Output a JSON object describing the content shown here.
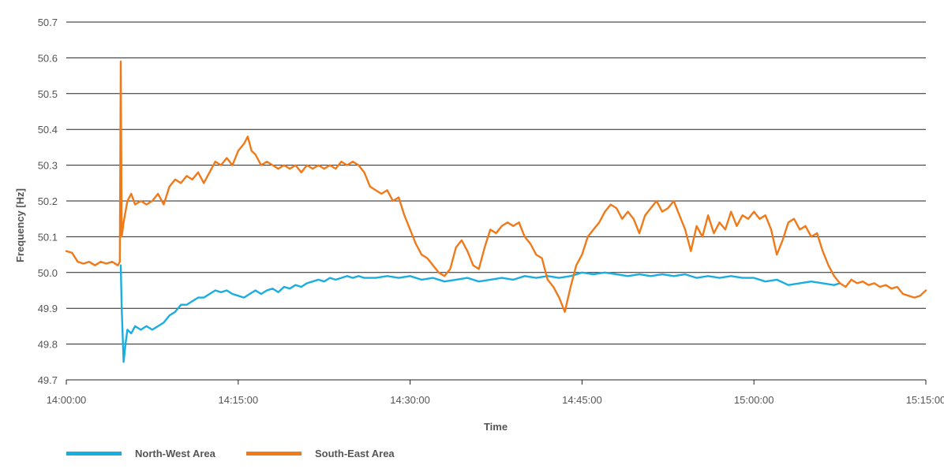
{
  "chart_data": {
    "type": "line",
    "title": "",
    "xlabel": "Time",
    "ylabel": "Frequency [Hz]",
    "ylim": [
      49.7,
      50.7
    ],
    "xlim": [
      "14:00:00",
      "15:15:00"
    ],
    "x_ticks": [
      "14:00:00",
      "14:15:00",
      "14:30:00",
      "14:45:00",
      "15:00:00",
      "15:15:00"
    ],
    "y_ticks": [
      "49.7",
      "49.8",
      "49.9",
      "50.0",
      "50.1",
      "50.2",
      "50.3",
      "50.4",
      "50.5",
      "50.6",
      "50.7"
    ],
    "grid": "horizontal",
    "legend_position": "bottom-left",
    "series": [
      {
        "name": "North-West Area",
        "color": "#1aaee0",
        "start_time": "14:04:45",
        "points": [
          [
            "14:04:45",
            50.02
          ],
          [
            "14:04:50",
            49.9
          ],
          [
            "14:05:00",
            49.75
          ],
          [
            "14:05:10",
            49.8
          ],
          [
            "14:05:20",
            49.84
          ],
          [
            "14:05:40",
            49.83
          ],
          [
            "14:06:00",
            49.85
          ],
          [
            "14:06:30",
            49.84
          ],
          [
            "14:07:00",
            49.85
          ],
          [
            "14:07:30",
            49.84
          ],
          [
            "14:08:00",
            49.85
          ],
          [
            "14:08:30",
            49.86
          ],
          [
            "14:09:00",
            49.88
          ],
          [
            "14:09:30",
            49.89
          ],
          [
            "14:10:00",
            49.91
          ],
          [
            "14:10:30",
            49.91
          ],
          [
            "14:11:00",
            49.92
          ],
          [
            "14:11:30",
            49.93
          ],
          [
            "14:12:00",
            49.93
          ],
          [
            "14:12:30",
            49.94
          ],
          [
            "14:13:00",
            49.95
          ],
          [
            "14:13:30",
            49.945
          ],
          [
            "14:14:00",
            49.95
          ],
          [
            "14:14:30",
            49.94
          ],
          [
            "14:15:00",
            49.935
          ],
          [
            "14:15:30",
            49.93
          ],
          [
            "14:16:00",
            49.94
          ],
          [
            "14:16:30",
            49.95
          ],
          [
            "14:17:00",
            49.94
          ],
          [
            "14:17:30",
            49.95
          ],
          [
            "14:18:00",
            49.955
          ],
          [
            "14:18:30",
            49.945
          ],
          [
            "14:19:00",
            49.96
          ],
          [
            "14:19:30",
            49.955
          ],
          [
            "14:20:00",
            49.965
          ],
          [
            "14:20:30",
            49.96
          ],
          [
            "14:21:00",
            49.97
          ],
          [
            "14:21:30",
            49.975
          ],
          [
            "14:22:00",
            49.98
          ],
          [
            "14:22:30",
            49.975
          ],
          [
            "14:23:00",
            49.985
          ],
          [
            "14:23:30",
            49.98
          ],
          [
            "14:24:00",
            49.985
          ],
          [
            "14:24:30",
            49.99
          ],
          [
            "14:25:00",
            49.985
          ],
          [
            "14:25:30",
            49.99
          ],
          [
            "14:26:00",
            49.985
          ],
          [
            "14:27:00",
            49.985
          ],
          [
            "14:28:00",
            49.99
          ],
          [
            "14:29:00",
            49.985
          ],
          [
            "14:30:00",
            49.99
          ],
          [
            "14:31:00",
            49.98
          ],
          [
            "14:32:00",
            49.985
          ],
          [
            "14:33:00",
            49.975
          ],
          [
            "14:34:00",
            49.98
          ],
          [
            "14:35:00",
            49.985
          ],
          [
            "14:36:00",
            49.975
          ],
          [
            "14:37:00",
            49.98
          ],
          [
            "14:38:00",
            49.985
          ],
          [
            "14:39:00",
            49.98
          ],
          [
            "14:40:00",
            49.99
          ],
          [
            "14:41:00",
            49.985
          ],
          [
            "14:42:00",
            49.99
          ],
          [
            "14:43:00",
            49.985
          ],
          [
            "14:44:00",
            49.99
          ],
          [
            "14:45:00",
            50.0
          ],
          [
            "14:46:00",
            49.995
          ],
          [
            "14:47:00",
            50.0
          ],
          [
            "14:48:00",
            49.995
          ],
          [
            "14:49:00",
            49.99
          ],
          [
            "14:50:00",
            49.995
          ],
          [
            "14:51:00",
            49.99
          ],
          [
            "14:52:00",
            49.995
          ],
          [
            "14:53:00",
            49.99
          ],
          [
            "14:54:00",
            49.995
          ],
          [
            "14:55:00",
            49.985
          ],
          [
            "14:56:00",
            49.99
          ],
          [
            "14:57:00",
            49.985
          ],
          [
            "14:58:00",
            49.99
          ],
          [
            "14:59:00",
            49.985
          ],
          [
            "15:00:00",
            49.985
          ],
          [
            "15:01:00",
            49.975
          ],
          [
            "15:02:00",
            49.98
          ],
          [
            "15:03:00",
            49.965
          ],
          [
            "15:04:00",
            49.97
          ],
          [
            "15:05:00",
            49.975
          ],
          [
            "15:06:00",
            49.97
          ],
          [
            "15:07:00",
            49.965
          ],
          [
            "15:07:30",
            49.97
          ]
        ]
      },
      {
        "name": "South-East Area",
        "color": "#f07a1a",
        "points": [
          [
            "14:00:00",
            50.06
          ],
          [
            "14:00:30",
            50.055
          ],
          [
            "14:01:00",
            50.03
          ],
          [
            "14:01:30",
            50.025
          ],
          [
            "14:02:00",
            50.03
          ],
          [
            "14:02:30",
            50.02
          ],
          [
            "14:03:00",
            50.03
          ],
          [
            "14:03:30",
            50.025
          ],
          [
            "14:04:00",
            50.03
          ],
          [
            "14:04:30",
            50.02
          ],
          [
            "14:04:40",
            50.03
          ],
          [
            "14:04:45",
            50.59
          ],
          [
            "14:04:50",
            50.1
          ],
          [
            "14:05:00",
            50.14
          ],
          [
            "14:05:20",
            50.2
          ],
          [
            "14:05:40",
            50.22
          ],
          [
            "14:06:00",
            50.19
          ],
          [
            "14:06:30",
            50.2
          ],
          [
            "14:07:00",
            50.19
          ],
          [
            "14:07:30",
            50.2
          ],
          [
            "14:08:00",
            50.22
          ],
          [
            "14:08:30",
            50.19
          ],
          [
            "14:09:00",
            50.24
          ],
          [
            "14:09:30",
            50.26
          ],
          [
            "14:10:00",
            50.25
          ],
          [
            "14:10:30",
            50.27
          ],
          [
            "14:11:00",
            50.26
          ],
          [
            "14:11:30",
            50.28
          ],
          [
            "14:12:00",
            50.25
          ],
          [
            "14:12:30",
            50.28
          ],
          [
            "14:13:00",
            50.31
          ],
          [
            "14:13:30",
            50.3
          ],
          [
            "14:14:00",
            50.32
          ],
          [
            "14:14:30",
            50.3
          ],
          [
            "14:15:00",
            50.34
          ],
          [
            "14:15:30",
            50.36
          ],
          [
            "14:15:50",
            50.38
          ],
          [
            "14:16:10",
            50.34
          ],
          [
            "14:16:30",
            50.33
          ],
          [
            "14:17:00",
            50.3
          ],
          [
            "14:17:30",
            50.31
          ],
          [
            "14:18:00",
            50.3
          ],
          [
            "14:18:30",
            50.29
          ],
          [
            "14:19:00",
            50.3
          ],
          [
            "14:19:30",
            50.29
          ],
          [
            "14:20:00",
            50.3
          ],
          [
            "14:20:30",
            50.28
          ],
          [
            "14:21:00",
            50.3
          ],
          [
            "14:21:30",
            50.29
          ],
          [
            "14:22:00",
            50.3
          ],
          [
            "14:22:30",
            50.29
          ],
          [
            "14:23:00",
            50.3
          ],
          [
            "14:23:30",
            50.29
          ],
          [
            "14:24:00",
            50.31
          ],
          [
            "14:24:30",
            50.3
          ],
          [
            "14:25:00",
            50.31
          ],
          [
            "14:25:30",
            50.3
          ],
          [
            "14:26:00",
            50.28
          ],
          [
            "14:26:30",
            50.24
          ],
          [
            "14:27:00",
            50.23
          ],
          [
            "14:27:30",
            50.22
          ],
          [
            "14:28:00",
            50.23
          ],
          [
            "14:28:30",
            50.2
          ],
          [
            "14:29:00",
            50.21
          ],
          [
            "14:29:30",
            50.16
          ],
          [
            "14:30:00",
            50.12
          ],
          [
            "14:30:30",
            50.08
          ],
          [
            "14:31:00",
            50.05
          ],
          [
            "14:31:30",
            50.04
          ],
          [
            "14:32:00",
            50.02
          ],
          [
            "14:32:30",
            50.0
          ],
          [
            "14:33:00",
            49.99
          ],
          [
            "14:33:30",
            50.01
          ],
          [
            "14:34:00",
            50.07
          ],
          [
            "14:34:30",
            50.09
          ],
          [
            "14:35:00",
            50.06
          ],
          [
            "14:35:30",
            50.02
          ],
          [
            "14:36:00",
            50.01
          ],
          [
            "14:36:30",
            50.07
          ],
          [
            "14:37:00",
            50.12
          ],
          [
            "14:37:30",
            50.11
          ],
          [
            "14:38:00",
            50.13
          ],
          [
            "14:38:30",
            50.14
          ],
          [
            "14:39:00",
            50.13
          ],
          [
            "14:39:30",
            50.14
          ],
          [
            "14:40:00",
            50.1
          ],
          [
            "14:40:30",
            50.08
          ],
          [
            "14:41:00",
            50.05
          ],
          [
            "14:41:30",
            50.04
          ],
          [
            "14:42:00",
            49.98
          ],
          [
            "14:42:30",
            49.96
          ],
          [
            "14:43:00",
            49.93
          ],
          [
            "14:43:30",
            49.89
          ],
          [
            "14:44:00",
            49.96
          ],
          [
            "14:44:30",
            50.02
          ],
          [
            "14:45:00",
            50.05
          ],
          [
            "14:45:30",
            50.1
          ],
          [
            "14:46:00",
            50.12
          ],
          [
            "14:46:30",
            50.14
          ],
          [
            "14:47:00",
            50.17
          ],
          [
            "14:47:30",
            50.19
          ],
          [
            "14:48:00",
            50.18
          ],
          [
            "14:48:30",
            50.15
          ],
          [
            "14:49:00",
            50.17
          ],
          [
            "14:49:30",
            50.15
          ],
          [
            "14:50:00",
            50.11
          ],
          [
            "14:50:30",
            50.16
          ],
          [
            "14:51:00",
            50.18
          ],
          [
            "14:51:30",
            50.2
          ],
          [
            "14:52:00",
            50.17
          ],
          [
            "14:52:30",
            50.18
          ],
          [
            "14:53:00",
            50.2
          ],
          [
            "14:53:30",
            50.16
          ],
          [
            "14:54:00",
            50.12
          ],
          [
            "14:54:30",
            50.06
          ],
          [
            "14:55:00",
            50.13
          ],
          [
            "14:55:30",
            50.1
          ],
          [
            "14:56:00",
            50.16
          ],
          [
            "14:56:30",
            50.11
          ],
          [
            "14:57:00",
            50.14
          ],
          [
            "14:57:30",
            50.12
          ],
          [
            "14:58:00",
            50.17
          ],
          [
            "14:58:30",
            50.13
          ],
          [
            "14:59:00",
            50.16
          ],
          [
            "14:59:30",
            50.15
          ],
          [
            "15:00:00",
            50.17
          ],
          [
            "15:00:30",
            50.15
          ],
          [
            "15:01:00",
            50.16
          ],
          [
            "15:01:30",
            50.12
          ],
          [
            "15:02:00",
            50.05
          ],
          [
            "15:02:30",
            50.09
          ],
          [
            "15:03:00",
            50.14
          ],
          [
            "15:03:30",
            50.15
          ],
          [
            "15:04:00",
            50.12
          ],
          [
            "15:04:30",
            50.13
          ],
          [
            "15:05:00",
            50.1
          ],
          [
            "15:05:30",
            50.11
          ],
          [
            "15:06:00",
            50.06
          ],
          [
            "15:06:30",
            50.02
          ],
          [
            "15:07:00",
            49.99
          ],
          [
            "15:07:30",
            49.97
          ],
          [
            "15:08:00",
            49.96
          ],
          [
            "15:08:30",
            49.98
          ],
          [
            "15:09:00",
            49.97
          ],
          [
            "15:09:30",
            49.975
          ],
          [
            "15:10:00",
            49.965
          ],
          [
            "15:10:30",
            49.97
          ],
          [
            "15:11:00",
            49.96
          ],
          [
            "15:11:30",
            49.965
          ],
          [
            "15:12:00",
            49.955
          ],
          [
            "15:12:30",
            49.96
          ],
          [
            "15:13:00",
            49.94
          ],
          [
            "15:13:30",
            49.935
          ],
          [
            "15:14:00",
            49.93
          ],
          [
            "15:14:30",
            49.935
          ],
          [
            "15:15:00",
            49.95
          ]
        ]
      }
    ]
  }
}
